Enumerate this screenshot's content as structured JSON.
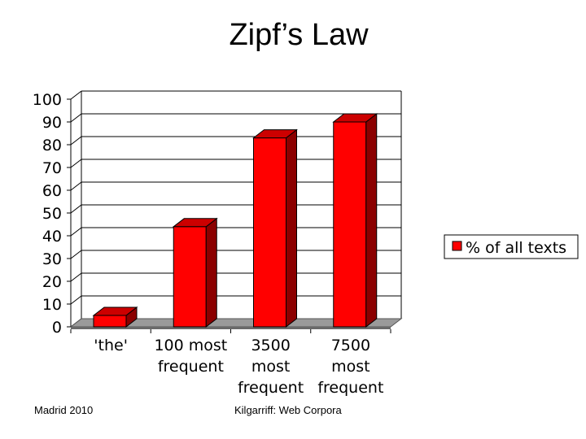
{
  "slide": {
    "title": "Zipf’s Law",
    "footer_left": "Madrid 2010",
    "footer_right": "Kilgarriff: Web Corpora"
  },
  "chart_data": {
    "type": "bar",
    "style": "3d",
    "categories": [
      [
        "'the'"
      ],
      [
        "100 most",
        "frequent"
      ],
      [
        "3500",
        "most",
        "frequent"
      ],
      [
        "7500",
        "most",
        "frequent"
      ]
    ],
    "series": [
      {
        "name": "% of all texts",
        "values": [
          5,
          44,
          83,
          90
        ],
        "color": "#ff0000"
      }
    ],
    "yticks": [
      0,
      10,
      20,
      30,
      40,
      50,
      60,
      70,
      80,
      90,
      100
    ],
    "ylim": [
      0,
      100
    ],
    "grid": true,
    "legend": "right"
  }
}
